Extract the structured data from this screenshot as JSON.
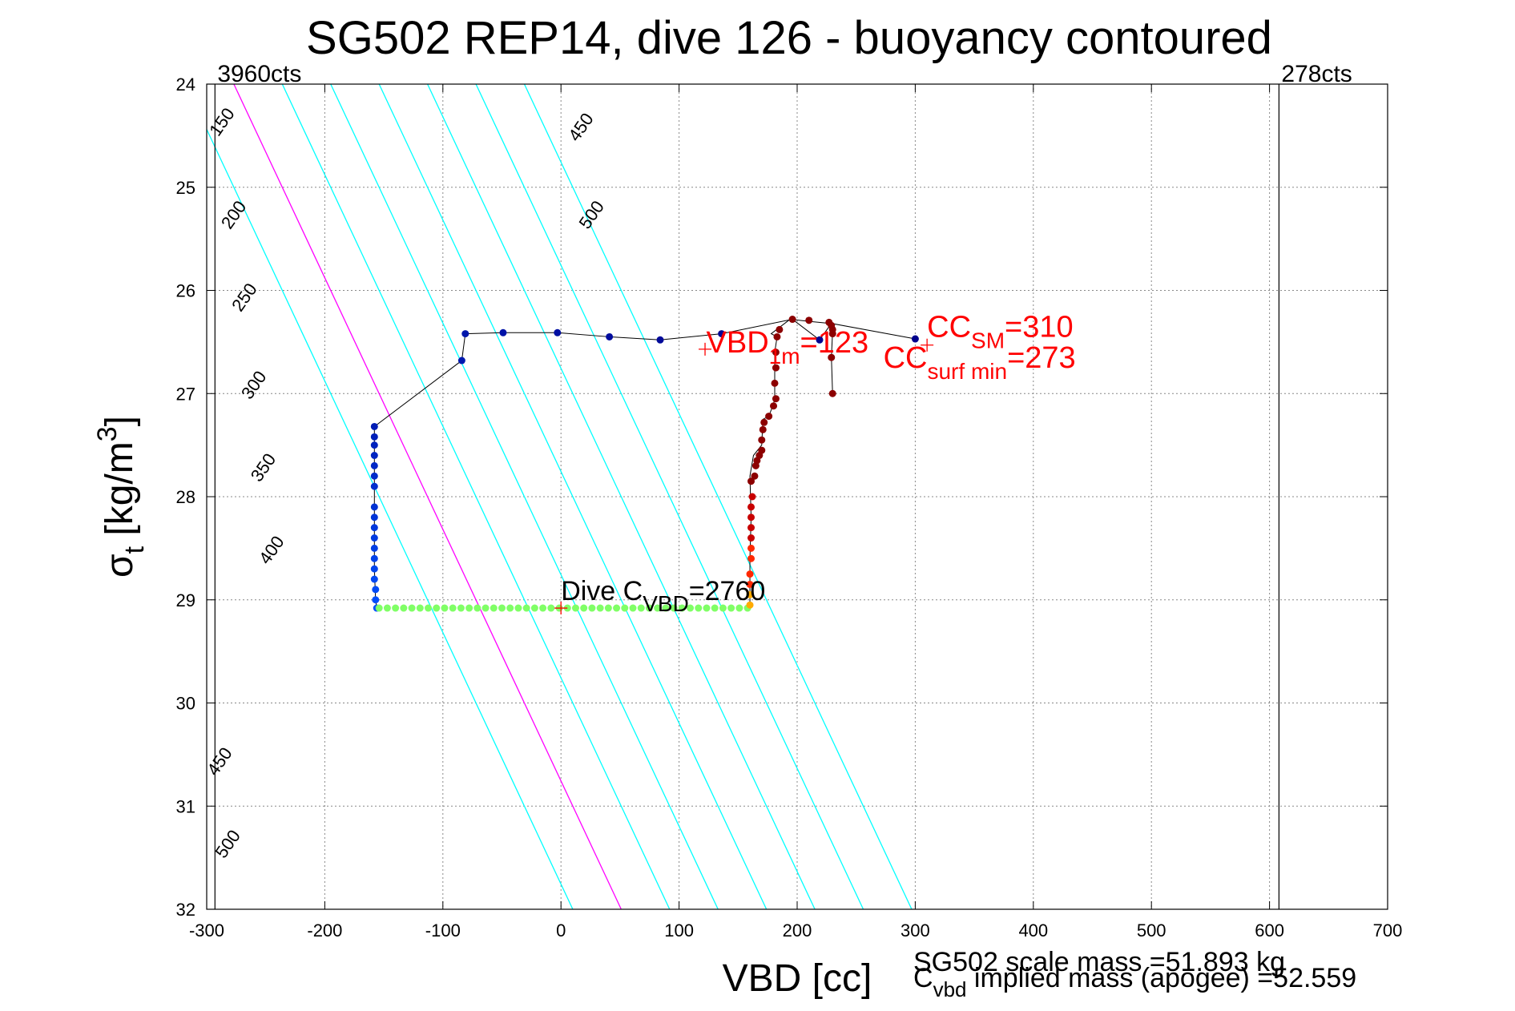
{
  "chart_data": {
    "type": "scatter",
    "title": "SG502 REP14, dive 126 - buoyancy contoured",
    "xlabel": "VBD [cc]",
    "ylabel": {
      "base": "σ",
      "sub": "t",
      "rest": " [kg/m",
      "sup": "3",
      "close": "]"
    },
    "xlim": [
      -300,
      700
    ],
    "ylim": [
      24,
      32
    ],
    "y_reversed": true,
    "grid": true,
    "x_ticks": [
      -300,
      -200,
      -100,
      0,
      100,
      200,
      300,
      400,
      500,
      600,
      700
    ],
    "y_ticks": [
      24,
      25,
      26,
      27,
      28,
      29,
      30,
      31,
      32
    ],
    "colors": {
      "contour": "#00ffff",
      "contour_highlight": "#ff00ff",
      "annotation": "#ff0000",
      "apogee_line": "#00ff00",
      "descent": "#0000a0",
      "ascent": "#8b0000",
      "track_line": "#000000"
    },
    "limit_lines": [
      {
        "x": -293,
        "label": "3960cts"
      },
      {
        "x": 608,
        "label": "278cts"
      }
    ],
    "contours": [
      {
        "label": "150",
        "intercept": -318,
        "highlight": false
      },
      {
        "label": "200",
        "intercept": -277,
        "highlight": true
      },
      {
        "label": "250",
        "intercept": -236,
        "highlight": false
      },
      {
        "label": "300",
        "intercept": -195,
        "highlight": false
      },
      {
        "label": "350",
        "intercept": -154,
        "highlight": false
      },
      {
        "label": "400",
        "intercept": -113,
        "highlight": false
      },
      {
        "label": "450",
        "intercept": -72,
        "highlight": false
      },
      {
        "label": "500",
        "intercept": -31,
        "highlight": false
      }
    ],
    "contour_slope": 41,
    "contour_labels": [
      {
        "text": "150",
        "x": -283,
        "y": 24.4
      },
      {
        "text": "200",
        "x": -273,
        "y": 25.3
      },
      {
        "text": "250",
        "x": -264,
        "y": 26.1
      },
      {
        "text": "300",
        "x": -256,
        "y": 26.95
      },
      {
        "text": "350",
        "x": -248,
        "y": 27.75
      },
      {
        "text": "400",
        "x": -241,
        "y": 28.55
      },
      {
        "text": "450",
        "x": 21,
        "y": 24.45
      },
      {
        "text": "500",
        "x": 30,
        "y": 25.3
      },
      {
        "text": "450",
        "x": -285,
        "y": 30.6
      },
      {
        "text": "500",
        "x": -278,
        "y": 31.4
      }
    ],
    "descent_track": [
      [
        300,
        26.47
      ],
      [
        229,
        26.32
      ],
      [
        219,
        26.48
      ],
      [
        196,
        26.28
      ],
      [
        136,
        26.42
      ],
      [
        84,
        26.48
      ],
      [
        41,
        26.45
      ],
      [
        -3,
        26.41
      ],
      [
        -49,
        26.41
      ],
      [
        -81,
        26.42
      ],
      [
        -84,
        26.68
      ],
      [
        -158,
        27.32
      ],
      [
        -158,
        27.5
      ],
      [
        -158,
        27.8
      ],
      [
        -158,
        28.1
      ],
      [
        -158,
        28.4
      ],
      [
        -158,
        28.7
      ],
      [
        -157,
        29.0
      ],
      [
        -156,
        29.08
      ]
    ],
    "descent_points": [
      [
        300,
        26.47
      ],
      [
        219,
        26.48
      ],
      [
        136,
        26.42
      ],
      [
        84,
        26.48
      ],
      [
        41,
        26.45
      ],
      [
        -3,
        26.41
      ],
      [
        -49,
        26.41
      ],
      [
        -81,
        26.42
      ],
      [
        -84,
        26.68
      ],
      [
        -158,
        27.32
      ],
      [
        -158,
        27.42
      ],
      [
        -158,
        27.5
      ],
      [
        -158,
        27.6
      ],
      [
        -158,
        27.7
      ],
      [
        -158,
        27.8
      ],
      [
        -158,
        27.9
      ],
      [
        -158,
        28.1
      ],
      [
        -158,
        28.2
      ],
      [
        -158,
        28.3
      ],
      [
        -158,
        28.4
      ],
      [
        -158,
        28.5
      ],
      [
        -158,
        28.6
      ],
      [
        -158,
        28.7
      ],
      [
        -158,
        28.8
      ],
      [
        -157,
        28.9
      ],
      [
        -157,
        29.0
      ],
      [
        -156,
        29.08
      ]
    ],
    "apogee_points": {
      "x_start": -154,
      "x_end": 158,
      "count": 46,
      "y": 29.08
    },
    "ascent_track": [
      [
        160,
        29.08
      ],
      [
        160,
        28.6
      ],
      [
        161,
        28.2
      ],
      [
        160,
        27.8
      ],
      [
        163,
        27.6
      ],
      [
        170,
        27.5
      ],
      [
        171,
        27.25
      ],
      [
        176,
        27.22
      ],
      [
        180,
        27.1
      ],
      [
        181,
        27.05
      ],
      [
        181,
        26.6
      ],
      [
        183,
        26.45
      ],
      [
        178,
        26.42
      ],
      [
        194,
        26.28
      ],
      [
        210,
        26.3
      ],
      [
        228,
        26.32
      ],
      [
        229,
        26.33
      ],
      [
        230,
        26.4
      ],
      [
        229,
        26.65
      ],
      [
        230,
        27.0
      ]
    ],
    "ascent_points": [
      [
        160,
        29.05
      ],
      [
        160,
        28.95
      ],
      [
        160,
        28.85
      ],
      [
        160,
        28.75
      ],
      [
        161,
        28.6
      ],
      [
        161,
        28.5
      ],
      [
        161,
        28.4
      ],
      [
        161,
        28.3
      ],
      [
        161,
        28.2
      ],
      [
        161,
        28.1
      ],
      [
        162,
        28.0
      ],
      [
        161,
        27.85
      ],
      [
        164,
        27.8
      ],
      [
        165,
        27.7
      ],
      [
        166,
        27.65
      ],
      [
        168,
        27.6
      ],
      [
        170,
        27.55
      ],
      [
        170,
        27.45
      ],
      [
        171,
        27.35
      ],
      [
        172,
        27.28
      ],
      [
        176,
        27.22
      ],
      [
        180,
        27.12
      ],
      [
        182,
        27.05
      ],
      [
        181,
        26.9
      ],
      [
        182,
        26.75
      ],
      [
        182,
        26.6
      ],
      [
        183,
        26.45
      ],
      [
        185,
        26.38
      ],
      [
        196,
        26.28
      ],
      [
        210,
        26.29
      ],
      [
        227,
        26.31
      ],
      [
        229,
        26.34
      ],
      [
        230,
        26.38
      ],
      [
        230,
        26.42
      ],
      [
        229,
        26.65
      ],
      [
        230,
        27.0
      ]
    ],
    "markers": [
      {
        "x": 0,
        "y": 29.08
      },
      {
        "x": 122,
        "y": 26.57
      },
      {
        "x": 310,
        "y": 26.53
      }
    ],
    "annotations": [
      {
        "base": "Dive C",
        "sub": "VBD",
        "rest": "=2760",
        "x": 0,
        "y": 29.0,
        "color": "black"
      },
      {
        "base": "VBD",
        "sub": "1m",
        "rest": "=123",
        "x": 123,
        "y": 26.6,
        "color": "red"
      },
      {
        "base": "CC",
        "sub": "SM",
        "rest": "=310",
        "x": 310,
        "y": 26.45,
        "color": "red"
      },
      {
        "base": "CC",
        "sub": "surf min",
        "rest": "=273",
        "x": 273,
        "y": 26.75,
        "color": "red"
      }
    ],
    "footer": {
      "scale_mass": "SG502 scale mass =51.893 kg",
      "implied_base": "C",
      "implied_sub": "vbd",
      "implied_rest": " implied mass (apogee) =52.559"
    }
  }
}
